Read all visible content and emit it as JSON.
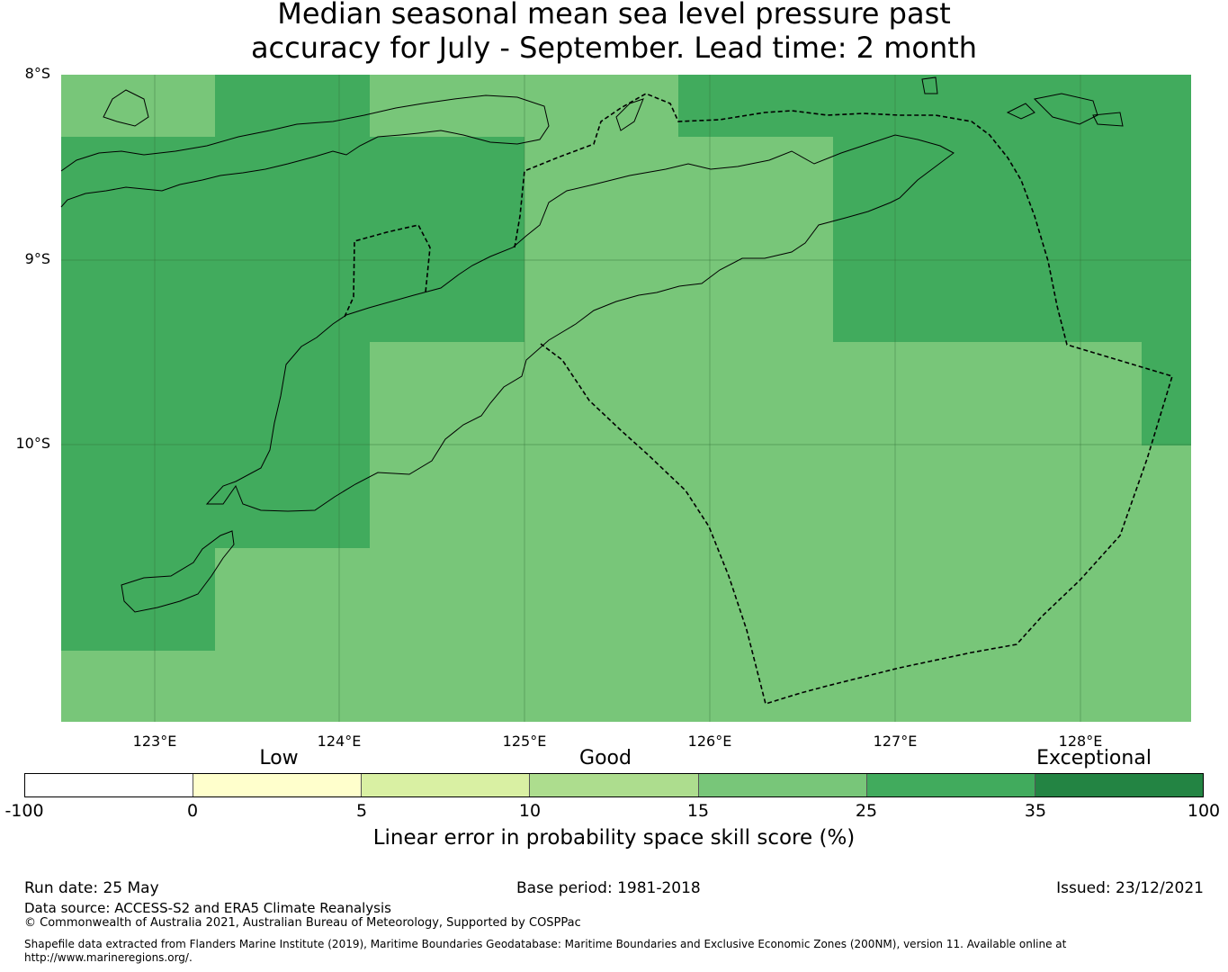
{
  "title": {
    "line1": "Median seasonal mean sea level pressure past",
    "line2": "accuracy for July - September. Lead time: 2 month"
  },
  "map": {
    "lat_labels": [
      "8°S",
      "9°S",
      "10°S"
    ],
    "lon_labels": [
      "123°E",
      "124°E",
      "125°E",
      "126°E",
      "127°E",
      "128°E"
    ],
    "extent": {
      "lon": [
        122.5,
        128.6
      ],
      "lat": [
        -11.5,
        -8.0
      ]
    },
    "colors": {
      "band_15_25": "#78c679",
      "band_25_35": "#41ab5d",
      "coastline": "#000000",
      "eez_boundary": "#000000"
    }
  },
  "legend": {
    "categories": [
      "Low",
      "Good",
      "Exceptional"
    ],
    "ticks": [
      "-100",
      "0",
      "5",
      "10",
      "15",
      "25",
      "35",
      "100"
    ],
    "colors": [
      "#ffffff",
      "#ffffcc",
      "#d9f0a3",
      "#addd8e",
      "#78c679",
      "#41ab5d",
      "#238443"
    ],
    "label": "Linear error in probability space skill score (%)"
  },
  "footer": {
    "run_date": "Run date: 25 May",
    "base_period": "Base period: 1981-2018",
    "issued": "Issued: 23/12/2021",
    "data_source": "Data source: ACCESS-S2 and ERA5 Climate Reanalysis",
    "copyright": "© Commonwealth of Australia 2021, Australian Bureau of Meteorology, Supported by COSPPac",
    "shapefile_line1": "Shapefile data extracted from Flanders Marine Institute (2019), Maritime Boundaries Geodatabase: Maritime Boundaries and Exclusive Economic Zones (200NM), version 11. Available online at",
    "shapefile_line2": "http://www.marineregions.org/."
  }
}
